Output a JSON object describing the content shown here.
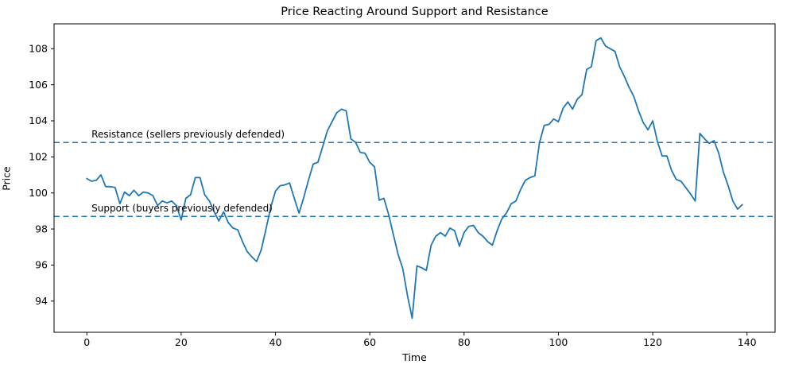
{
  "chart_data": {
    "type": "line",
    "title": "Price Reacting Around Support and Resistance",
    "xlabel": "Time",
    "ylabel": "Price",
    "xlim": [
      -6.95,
      145.95
    ],
    "ylim": [
      92.27,
      109.38
    ],
    "xticks": [
      0,
      20,
      40,
      60,
      80,
      100,
      120,
      140
    ],
    "yticks": [
      94,
      96,
      98,
      100,
      102,
      104,
      106,
      108
    ],
    "grid": false,
    "legend": "none",
    "line_color": "#1f77b4",
    "series": [
      {
        "name": "price",
        "x_start": 0,
        "x_step": 1,
        "values": [
          100.8,
          100.65,
          100.7,
          101.0,
          100.35,
          100.35,
          100.3,
          99.4,
          100.05,
          99.85,
          100.15,
          99.85,
          100.05,
          100.0,
          99.85,
          99.3,
          99.55,
          99.45,
          99.55,
          99.3,
          98.5,
          99.7,
          99.9,
          100.85,
          100.85,
          99.9,
          99.55,
          98.95,
          98.45,
          98.95,
          98.35,
          98.05,
          97.95,
          97.3,
          96.75,
          96.45,
          96.2,
          96.85,
          98.0,
          99.2,
          100.1,
          100.4,
          100.45,
          100.55,
          99.7,
          98.88,
          99.75,
          100.7,
          101.6,
          101.7,
          102.55,
          103.45,
          103.95,
          104.45,
          104.65,
          104.55,
          103.0,
          102.8,
          102.25,
          102.2,
          101.7,
          101.45,
          99.6,
          99.7,
          98.8,
          97.7,
          96.6,
          95.8,
          94.3,
          93.05,
          95.95,
          95.85,
          95.7,
          97.1,
          97.6,
          97.8,
          97.6,
          98.05,
          97.9,
          97.05,
          97.8,
          98.15,
          98.2,
          97.8,
          97.6,
          97.3,
          97.1,
          97.9,
          98.55,
          98.9,
          99.4,
          99.55,
          100.2,
          100.7,
          100.85,
          100.95,
          102.8,
          103.75,
          103.8,
          104.1,
          103.95,
          104.7,
          105.05,
          104.65,
          105.2,
          105.45,
          106.85,
          107.0,
          108.45,
          108.6,
          108.15,
          108.0,
          107.85,
          107.0,
          106.45,
          105.85,
          105.35,
          104.55,
          103.9,
          103.5,
          104.0,
          102.85,
          102.05,
          102.05,
          101.25,
          100.75,
          100.65,
          100.3,
          99.95,
          99.55,
          103.3,
          103.0,
          102.75,
          102.9,
          102.2,
          101.15,
          100.4,
          99.55,
          99.1,
          99.35
        ]
      }
    ],
    "reference_lines": [
      {
        "name": "resistance",
        "label": "Resistance (sellers previously defended)",
        "value": 102.8,
        "style": "dashed",
        "color": "#1f77b4",
        "label_x": 1
      },
      {
        "name": "support",
        "label": "Support (buyers previously defended)",
        "value": 98.7,
        "style": "dashed",
        "color": "#1f77b4",
        "label_x": 1
      }
    ]
  }
}
